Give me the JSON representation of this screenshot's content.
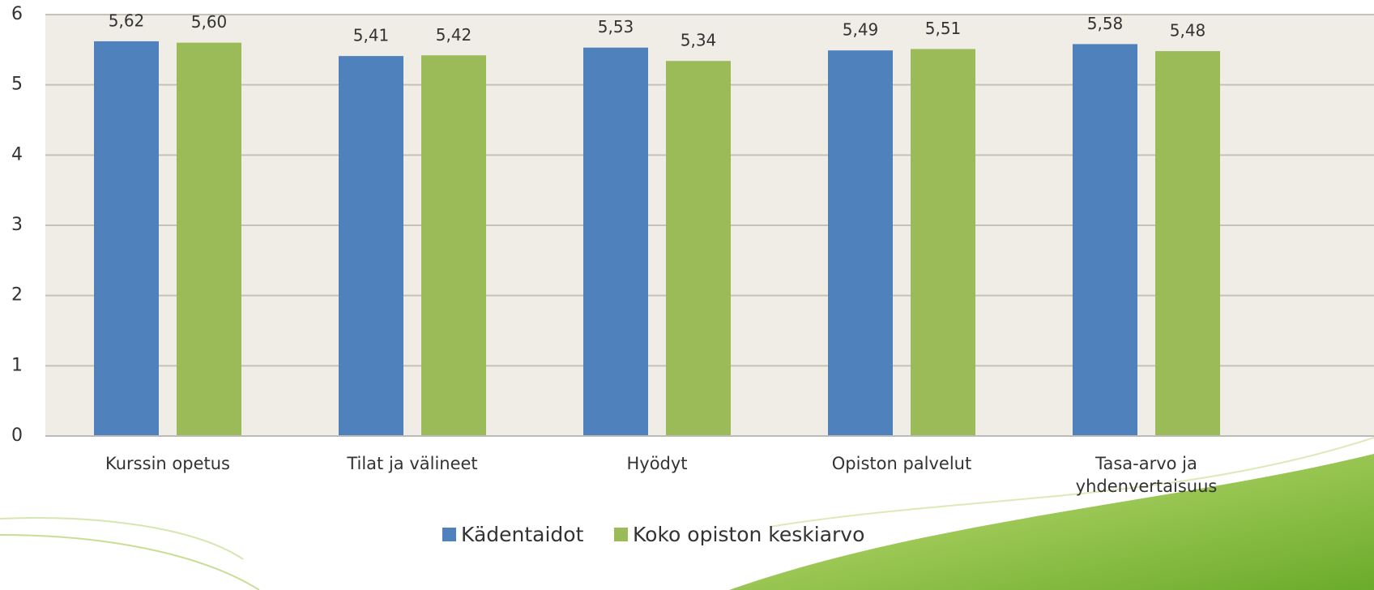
{
  "chart_data": {
    "type": "bar",
    "categories": [
      "Kurssin opetus",
      "Tilat ja välineet",
      "Hyödyt",
      "Opiston palvelut",
      "Tasa-arvo ja yhdenvertaisuus"
    ],
    "series": [
      {
        "name": "Kädentaidot",
        "color": "#4f81bd",
        "values": [
          5.62,
          5.41,
          5.53,
          5.49,
          5.58
        ],
        "value_labels": [
          "5,62",
          "5,41",
          "5,53",
          "5,49",
          "5,58"
        ]
      },
      {
        "name": "Koko opiston keskiarvo",
        "color": "#9bbb59",
        "values": [
          5.6,
          5.42,
          5.34,
          5.51,
          5.48
        ],
        "value_labels": [
          "5,60",
          "5,42",
          "5,34",
          "5,51",
          "5,48"
        ]
      }
    ],
    "ylim": [
      0,
      6
    ],
    "yticks": [
      0,
      1,
      2,
      3,
      4,
      5,
      6
    ],
    "grid": true,
    "legend": "bottom"
  }
}
